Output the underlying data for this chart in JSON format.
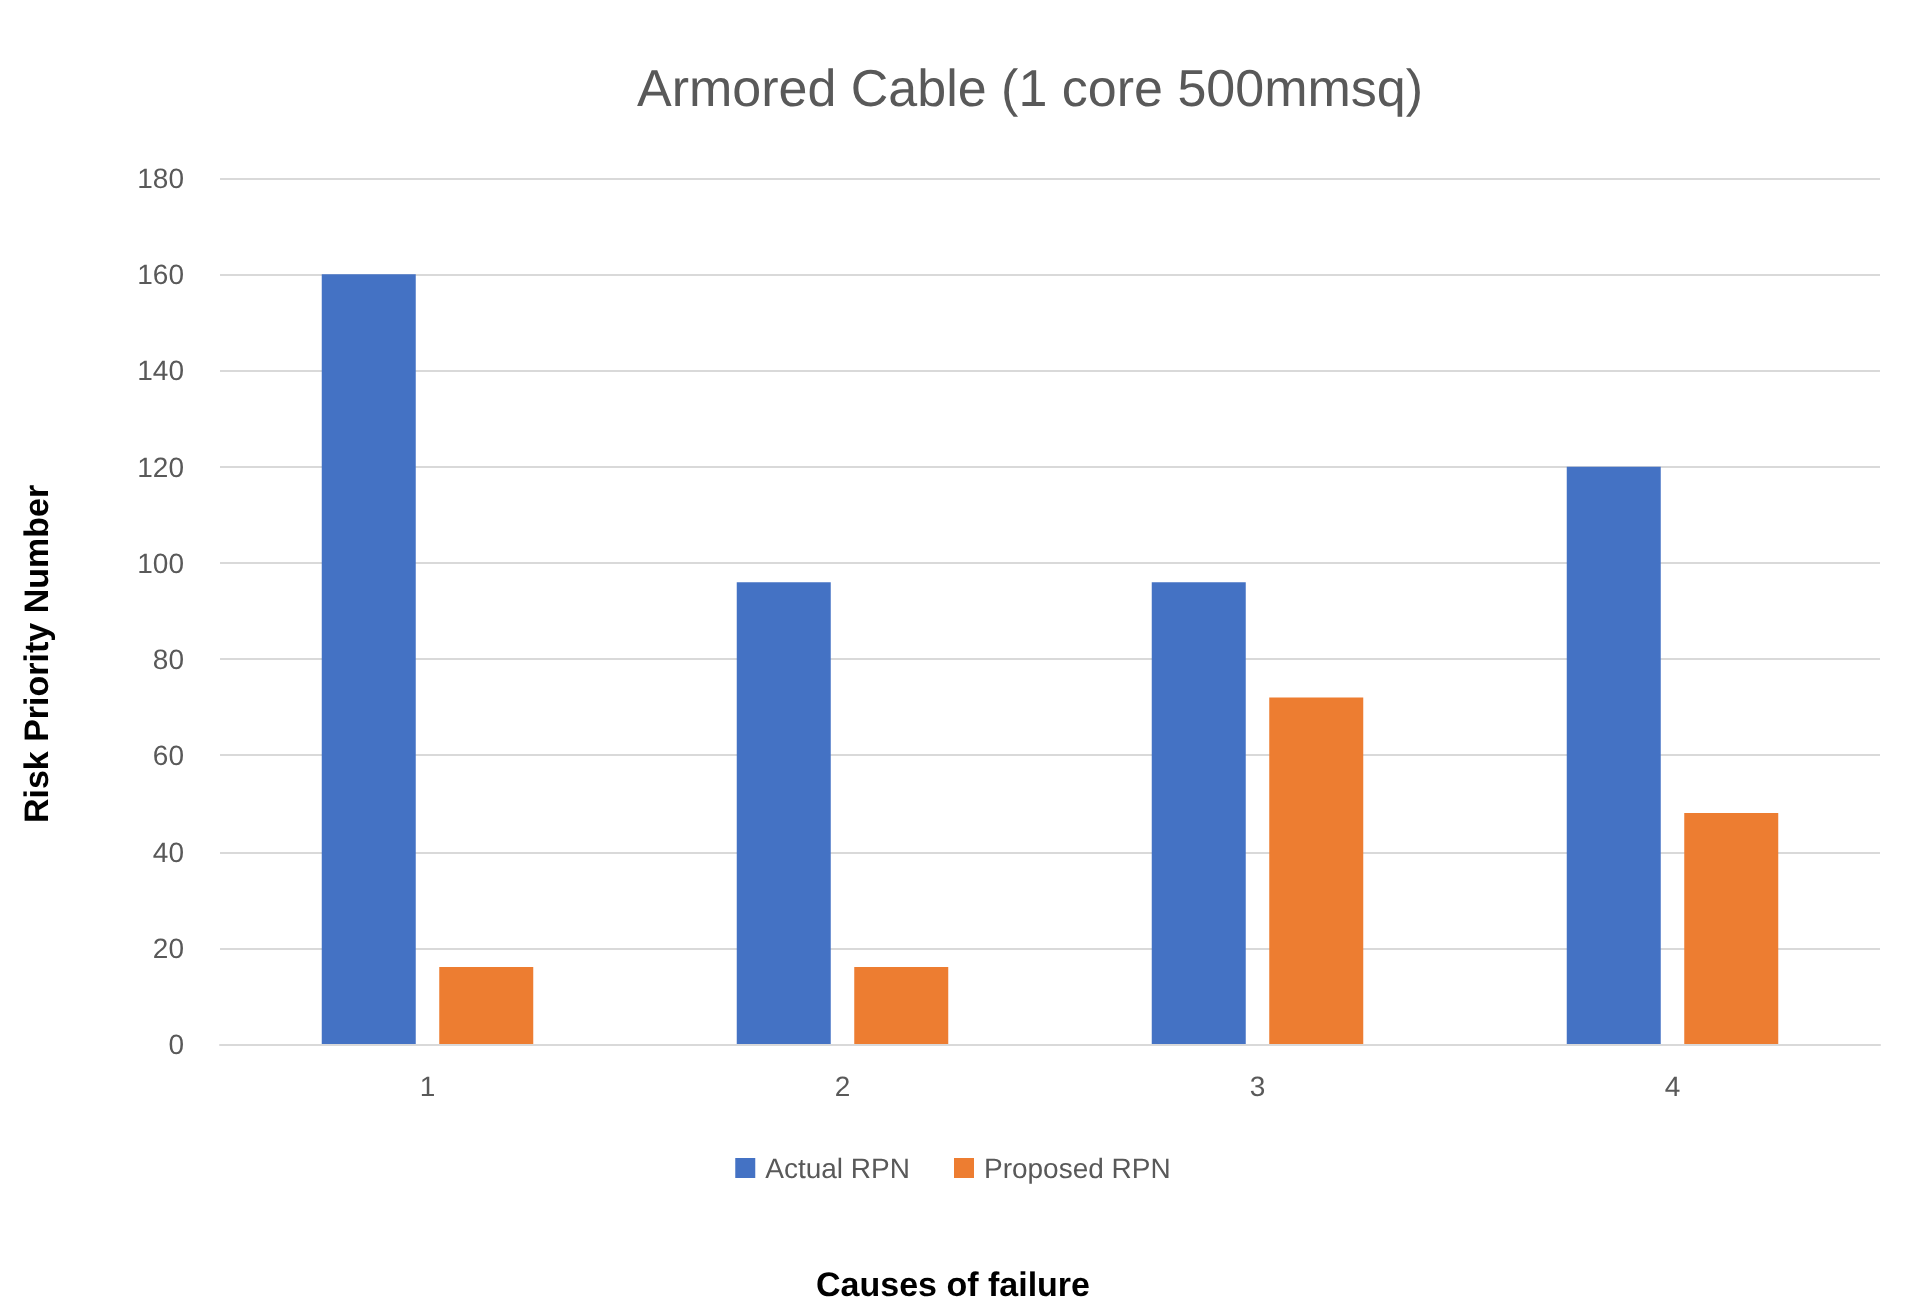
{
  "chart_data": {
    "type": "bar",
    "title": "Armored Cable (1 core 500mmsq)",
    "xlabel": "Causes of failure",
    "ylabel": "Risk Priority Number",
    "categories": [
      "1",
      "2",
      "3",
      "4"
    ],
    "series": [
      {
        "name": "Actual RPN",
        "color": "#4472c4",
        "values": [
          160,
          96,
          96,
          120
        ]
      },
      {
        "name": "Proposed RPN",
        "color": "#ed7d31",
        "values": [
          16,
          16,
          72,
          48
        ]
      }
    ],
    "ylim": [
      0,
      180
    ],
    "yticks": [
      0,
      20,
      40,
      60,
      80,
      100,
      120,
      140,
      160,
      180
    ],
    "grid": "y",
    "legend": "bottom"
  }
}
